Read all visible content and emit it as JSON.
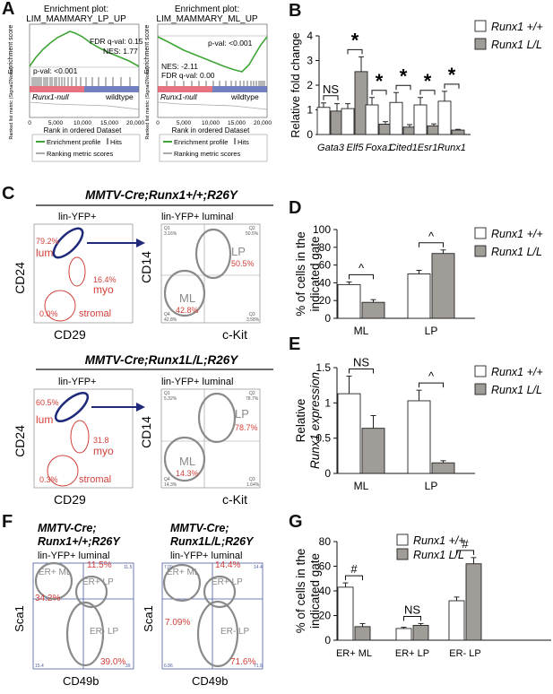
{
  "panels": {
    "A": "A",
    "B": "B",
    "C": "C",
    "D": "D",
    "E": "E",
    "F": "F",
    "G": "G"
  },
  "panel_a": {
    "left": {
      "title_line1": "Enrichment plot:",
      "title_line2": "LIM_MAMMARY_LP_UP",
      "fdr": "FDR q-val: 0.15",
      "nes": "NES: 1.77",
      "pval": "p-val: <0.001",
      "ylabel_top": "Enrichment score",
      "ylabel_bottom": "Ranked list metric (Signal2Noise)",
      "null_label": "Runx1-null",
      "wt_label": "wildtype",
      "x_ticks": [
        "0",
        "5,000",
        "10,000",
        "15,000",
        "20,000"
      ],
      "xlabel": "Rank in ordered Dataset",
      "legend": [
        "Enrichment profile",
        "Hits",
        "Ranking metric scores"
      ]
    },
    "right": {
      "title_line1": "Enrichment plot:",
      "title_line2": "LIM_MAMMARY_ML_UP",
      "pval": "p-val: <0.001",
      "nes": "NES: -2.11",
      "fdr": "FDR q-val: 0.00",
      "ylabel_top": "Enrichment score",
      "ylabel_bottom": "Ranked list metric (Signal2Noise)",
      "null_label": "Runx1-null",
      "wt_label": "wildtype",
      "x_ticks": [
        "0",
        "5,000",
        "10,000",
        "15,000",
        "20,000"
      ],
      "xlabel": "Rank in ordered Dataset",
      "legend": [
        "Enrichment profile",
        "Hits",
        "Ranking metric scores"
      ]
    }
  },
  "chart_data": [
    {
      "id": "B",
      "type": "bar",
      "ylabel": "Relative fold change",
      "ylim": [
        0,
        4
      ],
      "yticks": [
        "0",
        "1",
        "2",
        "3",
        "4"
      ],
      "categories": [
        "Gata3",
        "Elf5",
        "Foxa1",
        "Cited1",
        "Esr1",
        "Runx1"
      ],
      "series": [
        {
          "name": "Runx1 +/+",
          "values": [
            1.1,
            1.05,
            1.2,
            1.3,
            1.2,
            1.35
          ],
          "errors": [
            0.18,
            0.2,
            0.3,
            0.4,
            0.3,
            0.4
          ]
        },
        {
          "name": "Runx1 L/L",
          "values": [
            0.95,
            2.55,
            0.42,
            0.3,
            0.35,
            0.18
          ],
          "errors": [
            0.3,
            0.6,
            0.1,
            0.1,
            0.08,
            0.03
          ]
        }
      ],
      "significance": [
        "NS",
        "*",
        "*",
        "*",
        "*",
        "*"
      ]
    },
    {
      "id": "D",
      "type": "bar",
      "ylabel_line1": "% of cells in the",
      "ylabel_line2": "indicated gate",
      "ylim": [
        0,
        100
      ],
      "yticks": [
        "0",
        "20",
        "40",
        "60",
        "80",
        "100"
      ],
      "categories": [
        "ML",
        "LP"
      ],
      "series": [
        {
          "name": "Runx1 +/+",
          "values": [
            38,
            50
          ],
          "errors": [
            3,
            4
          ]
        },
        {
          "name": "Runx1 L/L",
          "values": [
            18,
            73
          ],
          "errors": [
            3,
            4
          ]
        }
      ],
      "significance": [
        "^",
        "^"
      ]
    },
    {
      "id": "E",
      "type": "bar",
      "ylabel_line1": "Relative",
      "ylabel_line2": "Runx1 expression",
      "ylim": [
        0,
        1.5
      ],
      "yticks": [
        "0",
        "0.5",
        "1",
        "1.5"
      ],
      "categories": [
        "ML",
        "LP"
      ],
      "series": [
        {
          "name": "Runx1 +/+",
          "values": [
            1.13,
            1.03
          ],
          "errors": [
            0.25,
            0.15
          ]
        },
        {
          "name": "Runx1 L/L",
          "values": [
            0.64,
            0.15
          ],
          "errors": [
            0.18,
            0.03
          ]
        }
      ],
      "significance": [
        "NS",
        "^"
      ]
    },
    {
      "id": "G",
      "type": "bar",
      "ylabel_line1": "% of cells in the",
      "ylabel_line2": "indicated gate",
      "ylim": [
        0,
        80
      ],
      "yticks": [
        "0",
        "20",
        "40",
        "60",
        "80"
      ],
      "categories": [
        "ER+ ML",
        "ER+ LP",
        "ER- LP"
      ],
      "series": [
        {
          "name": "Runx1 +/+",
          "values": [
            43,
            9.5,
            32
          ],
          "errors": [
            3.5,
            1,
            3
          ]
        },
        {
          "name": "Runx1 L/L",
          "values": [
            11,
            12,
            62
          ],
          "errors": [
            2.5,
            1.5,
            5
          ]
        }
      ],
      "significance": [
        "#",
        "NS",
        "#"
      ]
    }
  ],
  "panel_c": {
    "top": {
      "genotype": "MMTV-Cre;Runx1+/+;R26Y",
      "left_title": "lin-YFP+",
      "right_title": "lin-YFP+ luminal",
      "lum_pct": "79.2%",
      "lum": "lum",
      "myo_pct": "16.4%",
      "myo": "myo",
      "stromal_pct": "0.0%",
      "stromal": "stromal",
      "lp_pct": "50.5%",
      "ml_pct": "42.8%",
      "q1": "Q1",
      "q1v": "3.16%",
      "q2": "Q2",
      "q2v": "50.5%",
      "q3": "Q3",
      "q3v": "3.58%",
      "q4": "Q4",
      "q4v": "42.8%"
    },
    "bottom": {
      "genotype": "MMTV-Cre;Runx1L/L;R26Y",
      "left_title": "lin-YFP+",
      "right_title": "lin-YFP+ luminal",
      "lum_pct": "60.5%",
      "lum": "lum",
      "myo_pct": "31.8",
      "myo": "myo",
      "stromal_pct": "0.3%",
      "stromal": "stromal",
      "lp_pct": "78.7%",
      "ml_pct": "14.3%",
      "q1": "Q1",
      "q1v": "5.32%",
      "q2": "Q2",
      "q2v": "78.7%",
      "q3": "Q3",
      "q3v": "1.64%",
      "q4": "Q4",
      "q4v": "14.3%"
    },
    "x_left": "CD29",
    "y_left": "CD24",
    "x_right": "c-Kit",
    "y_right": "CD14",
    "gate_lp": "LP",
    "gate_ml": "ML"
  },
  "panel_f": {
    "left": {
      "genotype_l1": "MMTV-Cre;",
      "genotype_l2": "Runx1+/+;R26Y",
      "subtitle": "lin-YFP+ luminal",
      "er_ml": "ER+ ML",
      "er_lp": "ER+ LP",
      "erm_lp": "ER- LP",
      "pct_erml": "34.2%",
      "pct_erlp": "11.5%",
      "pct_ermlp": "39.0%",
      "c_tl": "",
      "c_tr": "11.5",
      "c_bl": "15.4",
      "c_br": "39"
    },
    "right": {
      "genotype_l1": "MMTV-Cre;",
      "genotype_l2": "Runx1L/L;R26Y",
      "subtitle": "lin-YFP+ luminal",
      "er_ml": "ER+ ML",
      "er_lp": "ER+ LP",
      "erm_lp": "ER- LP",
      "pct_erml": "7.09%",
      "pct_erlp": "14.4%",
      "pct_ermlp": "71.6%",
      "c_tl": "7.09",
      "c_tr": "14.4",
      "c_bl": "6.86",
      "c_br": "71.6"
    },
    "xlabel": "CD49b",
    "ylabel": "Sca1"
  },
  "colors": {
    "wt": "#ffffff",
    "ll": "#a09c98",
    "gsea_green": "#3fa535",
    "gate_red": "#d2403a",
    "gate_blue": "#1f2a7a",
    "gate_gray": "#8a8a8a"
  }
}
